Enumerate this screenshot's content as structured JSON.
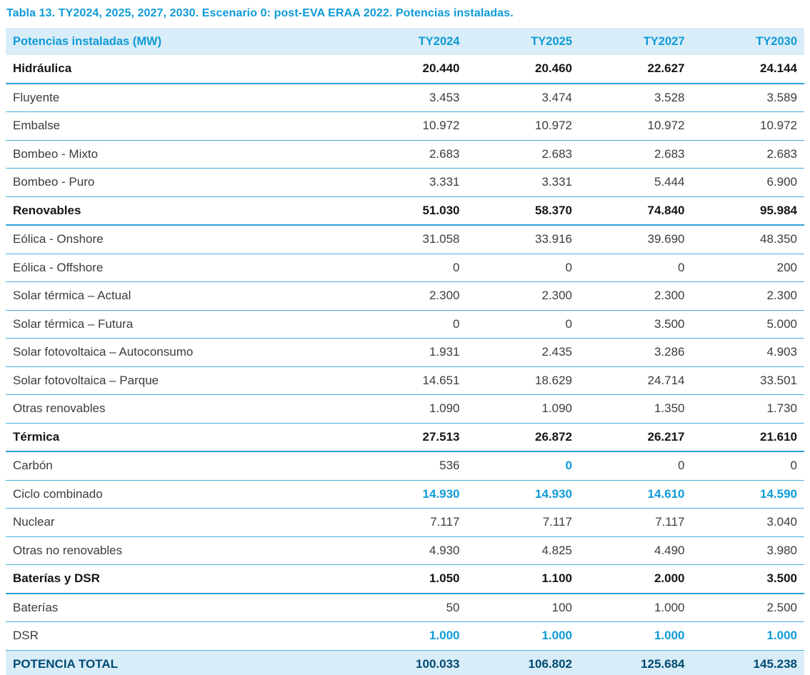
{
  "title": "Tabla 13. TY2024, 2025, 2027, 2030. Escenario 0: post-EVA ERAA 2022. Potencias instaladas.",
  "colors": {
    "accent_blue": "#0f9bd7",
    "header_background": "#d9edf8",
    "total_row_background": "#d9edf8",
    "total_row_text": "#004a73",
    "row_border": "#4aaedd",
    "body_text": "#3c3c3b"
  },
  "table": {
    "headers": [
      "Potencias instaladas (MW)",
      "TY2024",
      "TY2025",
      "TY2027",
      "TY2030"
    ],
    "rows": [
      {
        "label": "Hidráulica",
        "values": [
          "20.440",
          "20.460",
          "22.627",
          "24.144"
        ],
        "style": "section",
        "highlight": []
      },
      {
        "label": "Fluyente",
        "values": [
          "3.453",
          "3.474",
          "3.528",
          "3.589"
        ],
        "style": "normal",
        "highlight": []
      },
      {
        "label": "Embalse",
        "values": [
          "10.972",
          "10.972",
          "10.972",
          "10.972"
        ],
        "style": "normal",
        "highlight": []
      },
      {
        "label": "Bombeo - Mixto",
        "values": [
          "2.683",
          "2.683",
          "2.683",
          "2.683"
        ],
        "style": "normal",
        "highlight": []
      },
      {
        "label": "Bombeo - Puro",
        "values": [
          "3.331",
          "3.331",
          "5.444",
          "6.900"
        ],
        "style": "normal",
        "highlight": []
      },
      {
        "label": "Renovables",
        "values": [
          "51.030",
          "58.370",
          "74.840",
          "95.984"
        ],
        "style": "section",
        "highlight": []
      },
      {
        "label": "Eólica - Onshore",
        "values": [
          "31.058",
          "33.916",
          "39.690",
          "48.350"
        ],
        "style": "normal",
        "highlight": []
      },
      {
        "label": "Eólica - Offshore",
        "values": [
          "0",
          "0",
          "0",
          "200"
        ],
        "style": "normal",
        "highlight": []
      },
      {
        "label": "Solar térmica – Actual",
        "values": [
          "2.300",
          "2.300",
          "2.300",
          "2.300"
        ],
        "style": "normal",
        "highlight": []
      },
      {
        "label": "Solar térmica – Futura",
        "values": [
          "0",
          "0",
          "3.500",
          "5.000"
        ],
        "style": "normal",
        "highlight": []
      },
      {
        "label": "Solar fotovoltaica – Autoconsumo",
        "values": [
          "1.931",
          "2.435",
          "3.286",
          "4.903"
        ],
        "style": "normal",
        "highlight": []
      },
      {
        "label": "Solar fotovoltaica – Parque",
        "values": [
          "14.651",
          "18.629",
          "24.714",
          "33.501"
        ],
        "style": "normal",
        "highlight": []
      },
      {
        "label": "Otras renovables",
        "values": [
          "1.090",
          "1.090",
          "1.350",
          "1.730"
        ],
        "style": "normal",
        "highlight": []
      },
      {
        "label": "Térmica",
        "values": [
          "27.513",
          "26.872",
          "26.217",
          "21.610"
        ],
        "style": "section",
        "highlight": []
      },
      {
        "label": "Carbón",
        "values": [
          "536",
          "0",
          "0",
          "0"
        ],
        "style": "normal",
        "highlight": [
          1
        ]
      },
      {
        "label": "Ciclo combinado",
        "values": [
          "14.930",
          "14.930",
          "14.610",
          "14.590"
        ],
        "style": "normal",
        "highlight": [
          0,
          1,
          2,
          3
        ]
      },
      {
        "label": "Nuclear",
        "values": [
          "7.117",
          "7.117",
          "7.117",
          "3.040"
        ],
        "style": "normal",
        "highlight": []
      },
      {
        "label": "Otras no renovables",
        "values": [
          "4.930",
          "4.825",
          "4.490",
          "3.980"
        ],
        "style": "normal",
        "highlight": []
      },
      {
        "label": "Baterías y DSR",
        "values": [
          "1.050",
          "1.100",
          "2.000",
          "3.500"
        ],
        "style": "section",
        "highlight": []
      },
      {
        "label": "Baterías",
        "values": [
          "50",
          "100",
          "1.000",
          "2.500"
        ],
        "style": "normal",
        "highlight": []
      },
      {
        "label": "DSR",
        "values": [
          "1.000",
          "1.000",
          "1.000",
          "1.000"
        ],
        "style": "normal",
        "highlight": [
          0,
          1,
          2,
          3
        ]
      },
      {
        "label": "POTENCIA TOTAL",
        "values": [
          "100.033",
          "106.802",
          "125.684",
          "145.238"
        ],
        "style": "total",
        "highlight": []
      }
    ]
  }
}
